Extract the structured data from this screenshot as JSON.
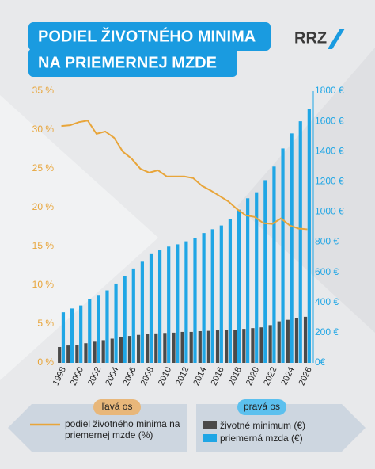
{
  "logo": "RRZ",
  "chart_data": {
    "type": "combo",
    "title": [
      "PODIEL ŽIVOTNÉHO MINIMA",
      "NA PRIEMERNEJ MZDE"
    ],
    "y_axis_label": "ľavá os",
    "y2_axis_label": "pravá os",
    "categories": [
      "1998",
      null,
      "2000",
      null,
      "2002",
      null,
      "2004",
      null,
      "2006",
      null,
      "2008",
      null,
      "2010",
      null,
      "2012",
      null,
      "2014",
      null,
      "2016",
      null,
      "2018",
      null,
      "2020",
      null,
      "2022",
      null,
      "2024",
      null,
      "2026"
    ],
    "ylim": [
      0,
      35
    ],
    "yticks": [
      {
        "value": 0,
        "label": "0 %"
      },
      {
        "value": 5,
        "label": "5 %"
      },
      {
        "value": 10,
        "label": "10 %"
      },
      {
        "value": 15,
        "label": "15 %"
      },
      {
        "value": 20,
        "label": "20 %"
      },
      {
        "value": 25,
        "label": "25 %"
      },
      {
        "value": 30,
        "label": "30 %"
      },
      {
        "value": 35,
        "label": "35 %"
      }
    ],
    "y2lim": [
      0,
      1800
    ],
    "y2ticks": [
      {
        "value": 0,
        "label": "0€"
      },
      {
        "value": 200,
        "label": "200 €"
      },
      {
        "value": 400,
        "label": "400 €"
      },
      {
        "value": 600,
        "label": "600 €"
      },
      {
        "value": 800,
        "label": "800 €"
      },
      {
        "value": 1000,
        "label": "1000 €"
      },
      {
        "value": 1200,
        "label": "1200 €"
      },
      {
        "value": 1400,
        "label": "1400 €"
      },
      {
        "value": 1600,
        "label": "1600 €"
      },
      {
        "value": 1800,
        "label": "1800 €"
      }
    ],
    "series": [
      {
        "name": "podiel životného minima na priemernej mzde (%)",
        "type": "line",
        "axis": "y",
        "color": "#e8a53a",
        "values": [
          30.5,
          30.6,
          31.0,
          31.2,
          29.5,
          29.8,
          29.0,
          27.2,
          26.3,
          25.0,
          24.5,
          24.8,
          24.0,
          24.0,
          24.0,
          23.8,
          22.8,
          22.2,
          21.5,
          20.8,
          19.8,
          19.0,
          18.8,
          18.0,
          17.9,
          18.6,
          17.7,
          17.3,
          17.2
        ]
      },
      {
        "name": "životné minimum (€)",
        "type": "bar",
        "axis": "y2",
        "color": "#4a4a4a",
        "values": [
          105,
          115,
          120,
          130,
          140,
          150,
          160,
          170,
          178,
          185,
          190,
          195,
          198,
          200,
          205,
          205,
          210,
          212,
          215,
          218,
          220,
          225,
          230,
          235,
          250,
          275,
          285,
          295,
          305
        ]
      },
      {
        "name": "priemerná mzda (€)",
        "type": "bar",
        "axis": "y2",
        "color": "#1fa6e5",
        "values": [
          335,
          360,
          380,
          420,
          450,
          480,
          525,
          575,
          625,
          670,
          725,
          745,
          770,
          785,
          805,
          825,
          860,
          885,
          910,
          955,
          1015,
          1090,
          1130,
          1210,
          1300,
          1420,
          1520,
          1600,
          1680
        ]
      }
    ]
  }
}
